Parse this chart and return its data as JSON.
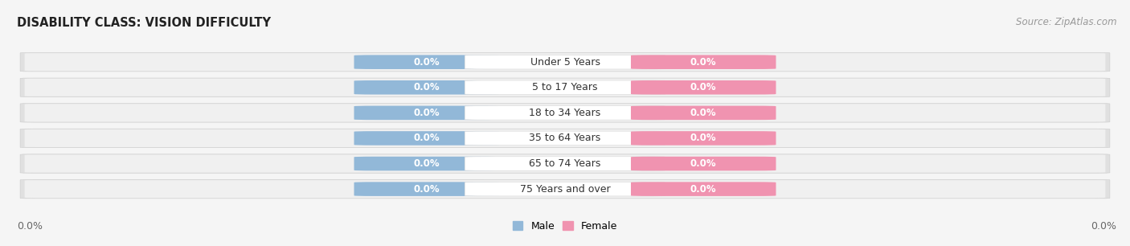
{
  "title": "DISABILITY CLASS: VISION DIFFICULTY",
  "source": "Source: ZipAtlas.com",
  "categories": [
    "Under 5 Years",
    "5 to 17 Years",
    "18 to 34 Years",
    "35 to 64 Years",
    "65 to 74 Years",
    "75 Years and over"
  ],
  "male_values": [
    0.0,
    0.0,
    0.0,
    0.0,
    0.0,
    0.0
  ],
  "female_values": [
    0.0,
    0.0,
    0.0,
    0.0,
    0.0,
    0.0
  ],
  "male_color": "#92b8d8",
  "female_color": "#f093b0",
  "male_label": "Male",
  "female_label": "Female",
  "row_bg_color": "#e8e8e8",
  "label_bg_color": "#ffffff",
  "title_fontsize": 10.5,
  "source_fontsize": 8.5,
  "label_fontsize": 9,
  "value_fontsize": 8.5,
  "figsize": [
    14.06,
    3.06
  ],
  "dpi": 100
}
